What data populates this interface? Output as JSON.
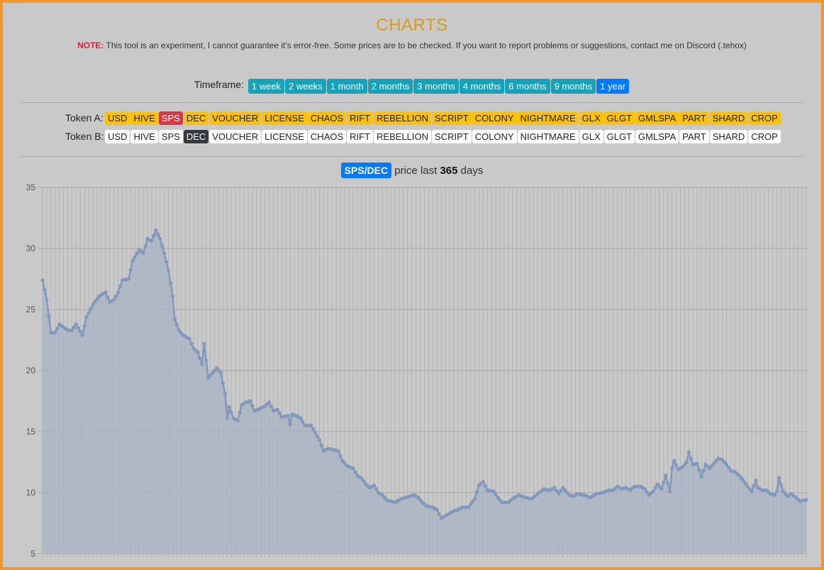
{
  "header": {
    "title": "CHARTS",
    "note_label": "NOTE:",
    "note_text": "This tool is an experiment, I cannot guarantee it's error-free. Some prices are to be checked. If you want to report problems or suggestions, contact me on Discord (.tehox)"
  },
  "timeframe": {
    "label": "Timeframe:",
    "options": [
      "1 week",
      "2 weeks",
      "1 month",
      "2 months",
      "3 months",
      "4 months",
      "6 months",
      "9 months",
      "1 year"
    ],
    "selected": "1 year"
  },
  "tokens": {
    "a_label": "Token A:",
    "b_label": "Token B:",
    "list": [
      "USD",
      "HIVE",
      "SPS",
      "DEC",
      "VOUCHER",
      "LICENSE",
      "CHAOS",
      "RIFT",
      "REBELLION",
      "SCRIPT",
      "COLONY",
      "NIGHTMARE",
      "GLX",
      "GLGT",
      "GMLSPA",
      "PART",
      "SHARD",
      "CROP"
    ],
    "selected_a": "SPS",
    "selected_b": "DEC"
  },
  "chart_header": {
    "pair": "SPS/DEC",
    "text_before": "price last",
    "days": "365",
    "text_after": "days"
  },
  "colors": {
    "accent": "#007bff",
    "timeframe_button": "#17a2b8",
    "token_a": "#ffc107",
    "token_a_selected": "#dc3545",
    "token_b_selected": "#343a40",
    "line": "#8299bb",
    "area": "#a8b3c5"
  },
  "chart_data": {
    "type": "area",
    "ylim": [
      5,
      35
    ],
    "y_ticks": [
      35,
      30,
      25,
      20,
      15,
      10,
      5
    ],
    "grid": true,
    "points_approx": 365,
    "keypoints": [
      [
        0,
        27.4
      ],
      [
        2,
        25.8
      ],
      [
        4,
        23.1
      ],
      [
        6,
        23.1
      ],
      [
        8,
        23.8
      ],
      [
        12,
        23.3
      ],
      [
        14,
        23.3
      ],
      [
        16,
        23.8
      ],
      [
        19,
        22.9
      ],
      [
        21,
        24.4
      ],
      [
        24,
        25.4
      ],
      [
        27,
        26.1
      ],
      [
        30,
        26.4
      ],
      [
        32,
        25.6
      ],
      [
        34,
        25.8
      ],
      [
        36,
        26.4
      ],
      [
        38,
        27.4
      ],
      [
        41,
        27.5
      ],
      [
        43,
        29.0
      ],
      [
        46,
        29.9
      ],
      [
        48,
        29.6
      ],
      [
        50,
        30.8
      ],
      [
        52,
        30.6
      ],
      [
        54,
        31.5
      ],
      [
        56,
        30.8
      ],
      [
        58,
        29.6
      ],
      [
        60,
        28.2
      ],
      [
        62,
        26.1
      ],
      [
        63,
        24.2
      ],
      [
        65,
        23.3
      ],
      [
        67,
        22.9
      ],
      [
        70,
        22.6
      ],
      [
        72,
        21.8
      ],
      [
        74,
        21.5
      ],
      [
        76,
        20.5
      ],
      [
        77,
        22.2
      ],
      [
        79,
        19.4
      ],
      [
        81,
        19.8
      ],
      [
        83,
        20.2
      ],
      [
        85,
        19.8
      ],
      [
        87,
        18.1
      ],
      [
        88,
        16.1
      ],
      [
        89,
        17.0
      ],
      [
        91,
        16.1
      ],
      [
        93,
        15.9
      ],
      [
        95,
        17.2
      ],
      [
        97,
        17.4
      ],
      [
        99,
        17.5
      ],
      [
        101,
        16.7
      ],
      [
        104,
        16.9
      ],
      [
        106,
        17.1
      ],
      [
        108,
        17.4
      ],
      [
        110,
        16.7
      ],
      [
        112,
        16.8
      ],
      [
        114,
        16.2
      ],
      [
        117,
        16.3
      ],
      [
        118,
        15.6
      ],
      [
        119,
        16.4
      ],
      [
        121,
        16.3
      ],
      [
        123,
        16.1
      ],
      [
        125,
        15.5
      ],
      [
        128,
        15.5
      ],
      [
        130,
        14.9
      ],
      [
        132,
        14.3
      ],
      [
        134,
        13.4
      ],
      [
        136,
        13.6
      ],
      [
        139,
        13.5
      ],
      [
        141,
        13.4
      ],
      [
        143,
        12.6
      ],
      [
        145,
        12.2
      ],
      [
        148,
        12.0
      ],
      [
        150,
        11.4
      ],
      [
        152,
        11.2
      ],
      [
        154,
        10.7
      ],
      [
        156,
        10.4
      ],
      [
        158,
        10.6
      ],
      [
        160,
        10.0
      ],
      [
        162,
        9.8
      ],
      [
        164,
        9.4
      ],
      [
        166,
        9.3
      ],
      [
        168,
        9.2
      ],
      [
        171,
        9.5
      ],
      [
        173,
        9.6
      ],
      [
        175,
        9.7
      ],
      [
        177,
        9.8
      ],
      [
        179,
        9.6
      ],
      [
        181,
        9.2
      ],
      [
        183,
        8.9
      ],
      [
        186,
        8.8
      ],
      [
        188,
        8.6
      ],
      [
        190,
        7.9
      ],
      [
        192,
        8.1
      ],
      [
        194,
        8.3
      ],
      [
        196,
        8.5
      ],
      [
        198,
        8.6
      ],
      [
        200,
        8.8
      ],
      [
        203,
        8.8
      ],
      [
        206,
        9.5
      ],
      [
        208,
        10.6
      ],
      [
        210,
        10.9
      ],
      [
        212,
        10.2
      ],
      [
        215,
        10.1
      ],
      [
        217,
        9.6
      ],
      [
        219,
        9.2
      ],
      [
        222,
        9.2
      ],
      [
        224,
        9.5
      ],
      [
        227,
        9.8
      ],
      [
        230,
        9.6
      ],
      [
        233,
        9.5
      ],
      [
        236,
        9.9
      ],
      [
        239,
        10.3
      ],
      [
        242,
        10.2
      ],
      [
        244,
        10.4
      ],
      [
        246,
        9.9
      ],
      [
        248,
        10.4
      ],
      [
        251,
        9.8
      ],
      [
        253,
        9.7
      ],
      [
        255,
        9.9
      ],
      [
        258,
        9.8
      ],
      [
        261,
        9.6
      ],
      [
        264,
        9.9
      ],
      [
        267,
        10.0
      ],
      [
        270,
        10.2
      ],
      [
        272,
        10.2
      ],
      [
        274,
        10.5
      ],
      [
        276,
        10.3
      ],
      [
        278,
        10.4
      ],
      [
        280,
        10.2
      ],
      [
        282,
        10.5
      ],
      [
        285,
        10.5
      ],
      [
        287,
        10.3
      ],
      [
        289,
        9.8
      ],
      [
        291,
        10.1
      ],
      [
        293,
        10.7
      ],
      [
        295,
        10.3
      ],
      [
        297,
        11.4
      ],
      [
        299,
        10.1
      ],
      [
        300,
        12.0
      ],
      [
        301,
        12.6
      ],
      [
        303,
        11.9
      ],
      [
        305,
        12.1
      ],
      [
        307,
        12.5
      ],
      [
        308,
        13.3
      ],
      [
        310,
        12.3
      ],
      [
        312,
        12.4
      ],
      [
        314,
        11.3
      ],
      [
        316,
        12.3
      ],
      [
        318,
        12.0
      ],
      [
        320,
        12.4
      ],
      [
        322,
        12.8
      ],
      [
        324,
        12.7
      ],
      [
        326,
        12.3
      ],
      [
        328,
        11.8
      ],
      [
        330,
        11.7
      ],
      [
        332,
        11.4
      ],
      [
        334,
        11.0
      ],
      [
        336,
        10.5
      ],
      [
        338,
        10.1
      ],
      [
        340,
        11.0
      ],
      [
        341,
        10.4
      ],
      [
        343,
        10.2
      ],
      [
        345,
        10.2
      ],
      [
        347,
        9.9
      ],
      [
        349,
        9.8
      ],
      [
        350,
        10.1
      ],
      [
        351,
        11.2
      ],
      [
        353,
        10.1
      ],
      [
        355,
        9.7
      ],
      [
        357,
        9.9
      ],
      [
        359,
        9.6
      ],
      [
        361,
        9.3
      ],
      [
        363,
        9.4
      ],
      [
        364,
        9.4
      ]
    ]
  }
}
